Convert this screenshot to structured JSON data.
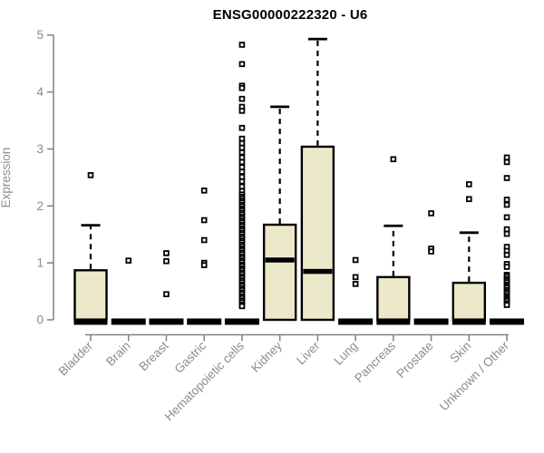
{
  "colors": {
    "box_fill": "#ECE8CA",
    "box_stroke": "#000000",
    "median_color": "#000000",
    "outlier_fill": "#FFFFFF",
    "axis_line": "#808080",
    "axis_text": "#8C8C8C",
    "title_color": "#000000",
    "background": "#FFFFFF"
  },
  "chart_data": {
    "type": "boxplot",
    "title": "ENSG00000222320 - U6",
    "xlabel": "",
    "ylabel": "Expression",
    "ylim": [
      0,
      5
    ],
    "yticks": [
      0,
      1,
      2,
      3,
      4,
      5
    ],
    "grid": "off",
    "legend": "none",
    "categories": [
      "Bladder",
      "Brain",
      "Breast",
      "Gastric",
      "Hematopoietic cells",
      "Kidney",
      "Liver",
      "Lung",
      "Pancreas",
      "Prostate",
      "Skin",
      "Unknown / Other"
    ],
    "series": [
      {
        "name": "Bladder",
        "q1": 0,
        "median": 0,
        "q3": 0.87,
        "whisker_low": 0,
        "whisker_high": 1.66,
        "outliers": [
          2.54
        ]
      },
      {
        "name": "Brain",
        "q1": 0,
        "median": 0,
        "q3": 0,
        "whisker_low": 0,
        "whisker_high": 0,
        "outliers": [
          1.04
        ]
      },
      {
        "name": "Breast",
        "q1": 0,
        "median": 0,
        "q3": 0,
        "whisker_low": 0,
        "whisker_high": 0,
        "outliers": [
          1.17,
          1.03,
          0.45
        ]
      },
      {
        "name": "Gastric",
        "q1": 0,
        "median": 0,
        "q3": 0,
        "whisker_low": 0,
        "whisker_high": 0,
        "outliers": [
          2.27,
          1.75,
          1.4,
          1.0,
          0.96
        ]
      },
      {
        "name": "Hematopoietic cells",
        "q1": 0,
        "median": 0,
        "q3": 0,
        "whisker_low": 0,
        "whisker_high": 0,
        "outliers": [
          4.83,
          4.49,
          4.11,
          4.07,
          3.88,
          3.74,
          3.67,
          3.37,
          3.18,
          3.1,
          3.02,
          2.94,
          2.85,
          2.77,
          2.68,
          2.6,
          2.51,
          2.43,
          2.34,
          2.26,
          2.2,
          2.16,
          2.13,
          2.09,
          2.06,
          2.02,
          1.99,
          1.95,
          1.92,
          1.88,
          1.85,
          1.81,
          1.78,
          1.74,
          1.71,
          1.67,
          1.64,
          1.6,
          1.57,
          1.53,
          1.5,
          1.46,
          1.43,
          1.39,
          1.36,
          1.32,
          1.29,
          1.25,
          1.22,
          1.18,
          1.15,
          1.11,
          1.08,
          1.04,
          1.01,
          0.97,
          0.94,
          0.9,
          0.87,
          0.83,
          0.8,
          0.76,
          0.73,
          0.69,
          0.66,
          0.62,
          0.59,
          0.55,
          0.52,
          0.48,
          0.45,
          0.41,
          0.38,
          0.34,
          0.31,
          0.27,
          0.24
        ]
      },
      {
        "name": "Kidney",
        "q1": 0,
        "median": 1.05,
        "q3": 1.67,
        "whisker_low": 0,
        "whisker_high": 3.74,
        "outliers": []
      },
      {
        "name": "Liver",
        "q1": 0,
        "median": 0.85,
        "q3": 3.04,
        "whisker_low": 0,
        "whisker_high": 4.93,
        "outliers": []
      },
      {
        "name": "Lung",
        "q1": 0,
        "median": 0,
        "q3": 0,
        "whisker_low": 0,
        "whisker_high": 0,
        "outliers": [
          1.05,
          0.75,
          0.63
        ]
      },
      {
        "name": "Pancreas",
        "q1": 0,
        "median": 0,
        "q3": 0.75,
        "whisker_low": 0,
        "whisker_high": 1.65,
        "outliers": [
          2.82
        ]
      },
      {
        "name": "Prostate",
        "q1": 0,
        "median": 0,
        "q3": 0,
        "whisker_low": 0,
        "whisker_high": 0,
        "outliers": [
          1.87,
          1.25,
          1.2
        ]
      },
      {
        "name": "Skin",
        "q1": 0,
        "median": 0,
        "q3": 0.65,
        "whisker_low": 0,
        "whisker_high": 1.53,
        "outliers": [
          2.38,
          2.12
        ]
      },
      {
        "name": "Unknown / Other",
        "q1": 0,
        "median": 0,
        "q3": 0,
        "whisker_low": 0,
        "whisker_high": 0,
        "outliers": [
          2.85,
          2.77,
          2.49,
          2.11,
          2.02,
          1.8,
          1.59,
          1.51,
          1.28,
          1.21,
          1.14,
          0.98,
          0.93,
          0.79,
          0.76,
          0.72,
          0.69,
          0.66,
          0.62,
          0.59,
          0.56,
          0.52,
          0.49,
          0.46,
          0.42,
          0.39,
          0.36,
          0.33,
          0.29,
          0.26
        ]
      }
    ]
  }
}
